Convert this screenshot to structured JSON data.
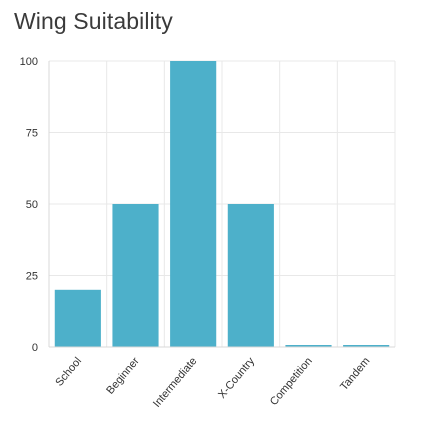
{
  "chart_data": {
    "type": "bar",
    "title": "Wing Suitability",
    "categories": [
      "School",
      "Beginner",
      "Intermediate",
      "X-Country",
      "Competition",
      "Tandem"
    ],
    "values": [
      20,
      50,
      100,
      50,
      0,
      0
    ],
    "yticks": [
      "0",
      "25",
      "50",
      "75",
      "100"
    ],
    "ylim": [
      0,
      100
    ],
    "grid": true,
    "bar_color": "#4db0ca",
    "grid_color": "#e8e8e8",
    "axis_color": "#d8d8d8"
  }
}
